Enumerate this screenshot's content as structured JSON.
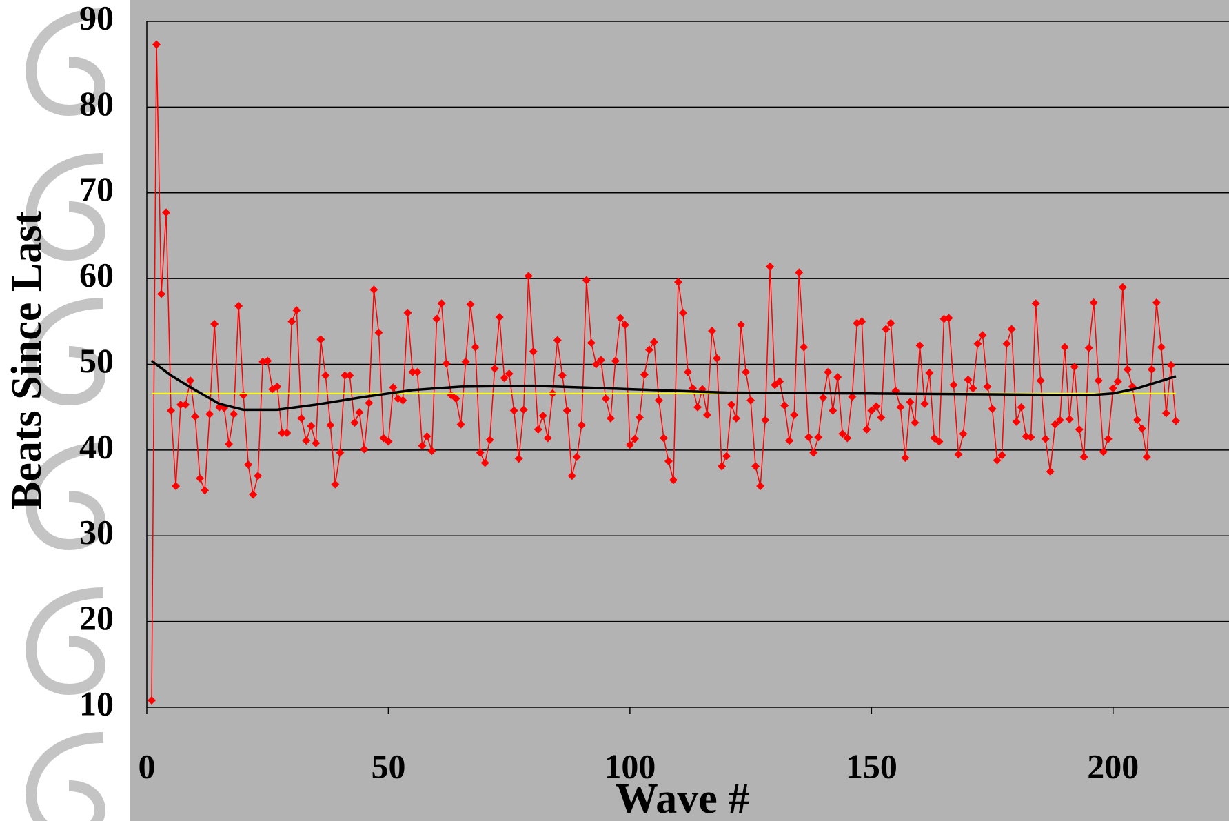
{
  "chart_data": {
    "type": "line",
    "x_label": "Wave #",
    "y_label": "Beats Since Last",
    "xlim": [
      0,
      224
    ],
    "xticks": [
      0,
      50,
      100,
      150,
      200
    ],
    "ylim": [
      10,
      90
    ],
    "yticks": [
      10,
      20,
      30,
      40,
      50,
      60,
      70,
      80,
      90
    ],
    "grid": true,
    "series": [
      {
        "color": "#ff0000",
        "markers": true,
        "x": [
          1,
          2,
          3,
          4,
          5,
          6,
          7,
          8,
          9,
          10,
          11,
          12,
          13,
          14,
          15,
          16,
          17,
          18,
          19,
          20,
          21,
          22,
          23,
          24,
          25,
          26,
          27,
          28,
          29,
          30,
          31,
          32,
          33,
          34,
          35,
          36,
          37,
          38,
          39,
          40,
          41,
          42,
          43,
          44,
          45,
          46,
          47,
          48,
          49,
          50,
          51,
          52,
          53,
          54,
          55,
          56,
          57,
          58,
          59,
          60,
          61,
          62,
          63,
          64,
          65,
          66,
          67,
          68,
          69,
          70,
          71,
          72,
          73,
          74,
          75,
          76,
          77,
          78,
          79,
          80,
          81,
          82,
          83,
          84,
          85,
          86,
          87,
          88,
          89,
          90,
          91,
          92,
          93,
          94,
          95,
          96,
          97,
          98,
          99,
          100,
          101,
          102,
          103,
          104,
          105,
          106,
          107,
          108,
          109,
          110,
          111,
          112,
          113,
          114,
          115,
          116,
          117,
          118,
          119,
          120,
          121,
          122,
          123,
          124,
          125,
          126,
          127,
          128,
          129,
          130,
          131,
          132,
          133,
          134,
          135,
          136,
          137,
          138,
          139,
          140,
          141,
          142,
          143,
          144,
          145,
          146,
          147,
          148,
          149,
          150,
          151,
          152,
          153,
          154,
          155,
          156,
          157,
          158,
          159,
          160,
          161,
          162,
          163,
          164,
          165,
          166,
          167,
          168,
          169,
          170,
          171,
          172,
          173,
          174,
          175,
          176,
          177,
          178,
          179,
          180,
          181,
          182,
          183,
          184,
          185,
          186,
          187,
          188,
          189,
          190,
          191,
          192,
          193,
          194,
          195,
          196,
          197,
          198,
          199,
          200,
          201,
          202,
          203,
          204,
          205,
          206,
          207,
          208,
          209,
          210,
          211,
          212,
          213
        ],
        "values": [
          10.8,
          87.3,
          58.2,
          67.7,
          44.6,
          35.8,
          45.3,
          45.3,
          48.1,
          43.9,
          36.7,
          35.3,
          44.2,
          54.7,
          45,
          44.9,
          40.7,
          44.2,
          56.8,
          46.4,
          38.3,
          34.8,
          37,
          50.3,
          50.4,
          47.1,
          47.4,
          42,
          42,
          55,
          56.3,
          43.7,
          41.1,
          42.8,
          40.8,
          52.9,
          48.7,
          42.9,
          36,
          39.7,
          48.7,
          48.7,
          43.2,
          44.4,
          40.1,
          45.5,
          58.7,
          53.7,
          41.4,
          41,
          47.3,
          46,
          45.8,
          56,
          49.1,
          49.1,
          40.5,
          41.6,
          39.9,
          55.3,
          57.1,
          50.1,
          46.4,
          46,
          43,
          50.3,
          57,
          52,
          39.7,
          38.5,
          41.2,
          49.5,
          55.5,
          48.4,
          48.9,
          44.6,
          39,
          44.7,
          60.3,
          51.5,
          42.4,
          44,
          41.4,
          46.6,
          52.8,
          48.7,
          44.6,
          37,
          39.2,
          42.9,
          59.8,
          52.5,
          50,
          50.5,
          46,
          43.7,
          50.4,
          55.4,
          54.6,
          40.6,
          41.3,
          43.8,
          48.8,
          51.7,
          52.6,
          45.8,
          41.4,
          38.7,
          36.5,
          59.6,
          56,
          49.1,
          47.2,
          45,
          47.1,
          44.1,
          53.9,
          50.7,
          38.1,
          39.3,
          45.3,
          43.7,
          54.6,
          49.1,
          45.8,
          38.1,
          35.8,
          43.5,
          61.4,
          47.6,
          48,
          45.2,
          41.1,
          44.1,
          60.7,
          52,
          41.5,
          39.7,
          41.5,
          46.1,
          49.1,
          44.6,
          48.5,
          41.9,
          41.4,
          46.2,
          54.8,
          55,
          42.4,
          44.6,
          45.1,
          43.8,
          54.1,
          54.8,
          46.9,
          45,
          39.1,
          45.6,
          43.2,
          52.2,
          45.4,
          49,
          41.4,
          41,
          55.3,
          55.4,
          47.6,
          39.5,
          41.9,
          48.2,
          47.2,
          52.4,
          53.4,
          47.4,
          44.8,
          38.8,
          39.4,
          52.4,
          54.1,
          43.3,
          45,
          41.6,
          41.5,
          57.1,
          48.1,
          41.3,
          37.5,
          43,
          43.5,
          52,
          43.6,
          49.7,
          42.4,
          39.2,
          51.9,
          57.2,
          48.1,
          39.8,
          41.3,
          47.2,
          48,
          59,
          49.4,
          47.4,
          43.5,
          42.5,
          39.2,
          49.4,
          57.2,
          52,
          44.3,
          49.9,
          43.4
        ]
      },
      {
        "color": "#ffff00",
        "markers": false,
        "x": [
          1,
          213
        ],
        "values": [
          46.6,
          46.6
        ]
      },
      {
        "color": "#000000",
        "markers": false,
        "x": [
          1,
          5,
          10,
          15,
          20,
          27,
          35,
          45,
          55,
          65,
          80,
          100,
          120,
          150,
          175,
          195,
          200,
          205,
          213
        ],
        "values": [
          50.4,
          48.7,
          47,
          45.4,
          44.7,
          44.7,
          45.3,
          46.2,
          47,
          47.4,
          47.5,
          47.1,
          46.7,
          46.6,
          46.5,
          46.4,
          46.6,
          47.2,
          48.6
        ]
      }
    ]
  }
}
